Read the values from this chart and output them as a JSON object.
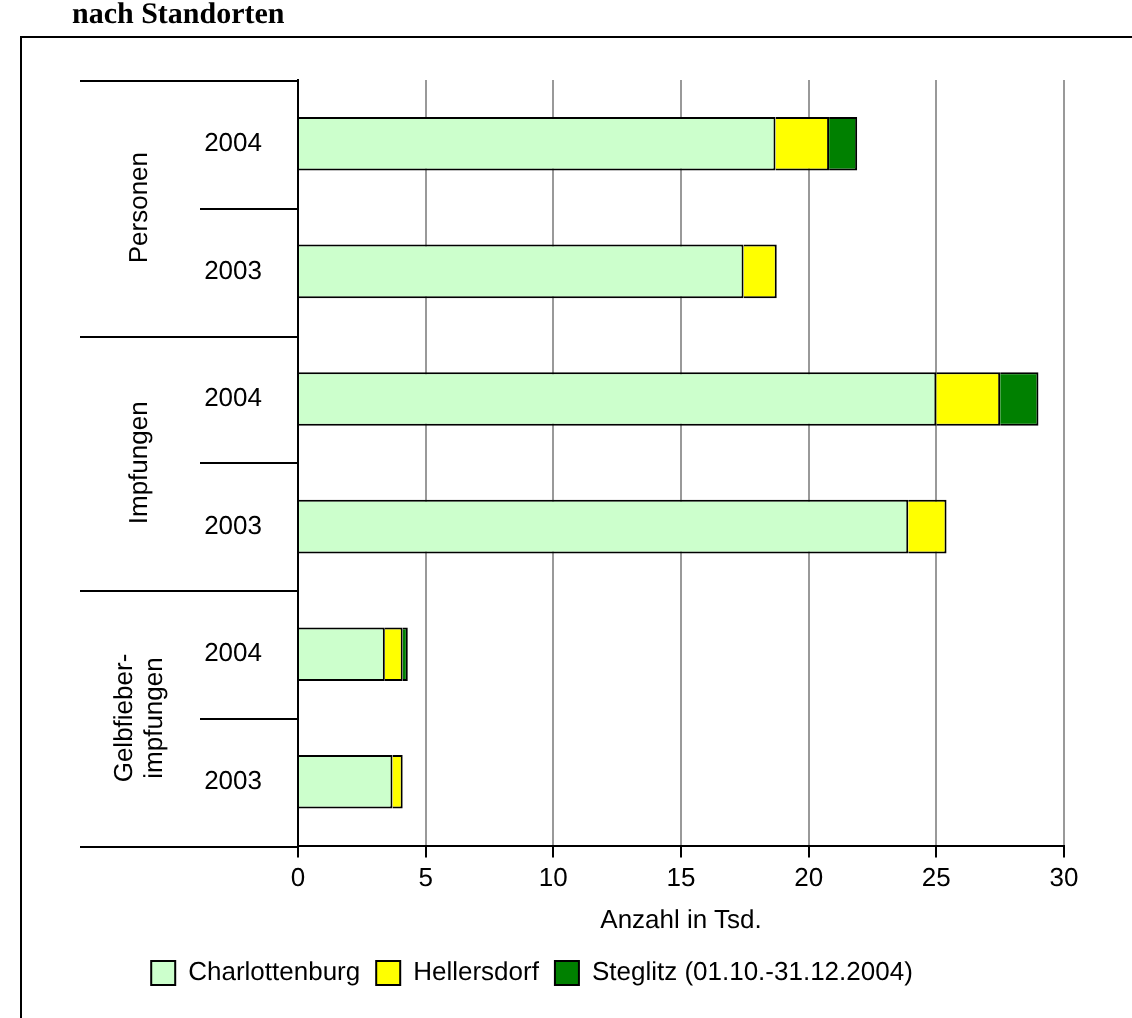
{
  "chart_data": {
    "type": "bar",
    "orientation": "horizontal",
    "stacked": true,
    "title": "nach Standorten",
    "categories": [
      "2004",
      "2003",
      "2004",
      "2003",
      "2004",
      "2003"
    ],
    "annotations": [
      "Personen",
      "Impfungen",
      "Gelbfieber-\nimpfungen"
    ],
    "series": [
      {
        "name": "Charlottenburg",
        "color": "#ccffcc",
        "values": [
          18.7,
          17.45,
          25.0,
          23.9,
          3.4,
          3.7
        ]
      },
      {
        "name": "Hellersdorf",
        "color": "#ffff00",
        "values": [
          2.1,
          1.3,
          2.5,
          1.5,
          0.7,
          0.4
        ]
      },
      {
        "name": "Steglitz (01.10.-31.12.2004)",
        "color": "#008000",
        "values": [
          1.1,
          null,
          1.5,
          null,
          0.2,
          null
        ]
      }
    ],
    "xlabel": "Anzahl in Tsd.",
    "xlim": [
      0,
      30
    ],
    "xticks": [
      0,
      5,
      10,
      15,
      20,
      25,
      30
    ],
    "grid": "x",
    "legend": "bottom"
  }
}
